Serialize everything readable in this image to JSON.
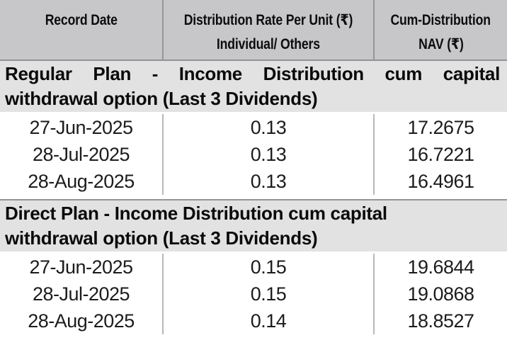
{
  "table": {
    "columns": [
      {
        "line1": "Record Date",
        "line2": ""
      },
      {
        "line1": "Distribution Rate Per Unit (₹)",
        "line2": "Individual/ Others"
      },
      {
        "line1": "Cum-Distribution",
        "line2": "NAV (₹)"
      }
    ],
    "sections": [
      {
        "title_line1": "Regular Plan - Income Distribution cum capital",
        "title_line2": "withdrawal option (Last 3 Dividends)",
        "rows": [
          {
            "record_date": "27-Jun-2025",
            "rate": "0.13",
            "nav": "17.2675"
          },
          {
            "record_date": "28-Jul-2025",
            "rate": "0.13",
            "nav": "16.7221"
          },
          {
            "record_date": "28-Aug-2025",
            "rate": "0.13",
            "nav": "16.4961"
          }
        ]
      },
      {
        "title_line1": "Direct Plan - Income Distribution cum capital",
        "title_line2": "withdrawal option (Last 3 Dividends)",
        "rows": [
          {
            "record_date": "27-Jun-2025",
            "rate": "0.15",
            "nav": "19.6844"
          },
          {
            "record_date": "28-Jul-2025",
            "rate": "0.15",
            "nav": "19.0868"
          },
          {
            "record_date": "28-Aug-2025",
            "rate": "0.14",
            "nav": "18.8527"
          }
        ]
      }
    ]
  },
  "colors": {
    "header_background": "#c7c7c9",
    "section_band_background": "#e2e2e3",
    "header_divider": "#96969a",
    "body_divider": "#b9b9bc",
    "band_top_border": "#949496",
    "text": "#0d0d0d"
  }
}
